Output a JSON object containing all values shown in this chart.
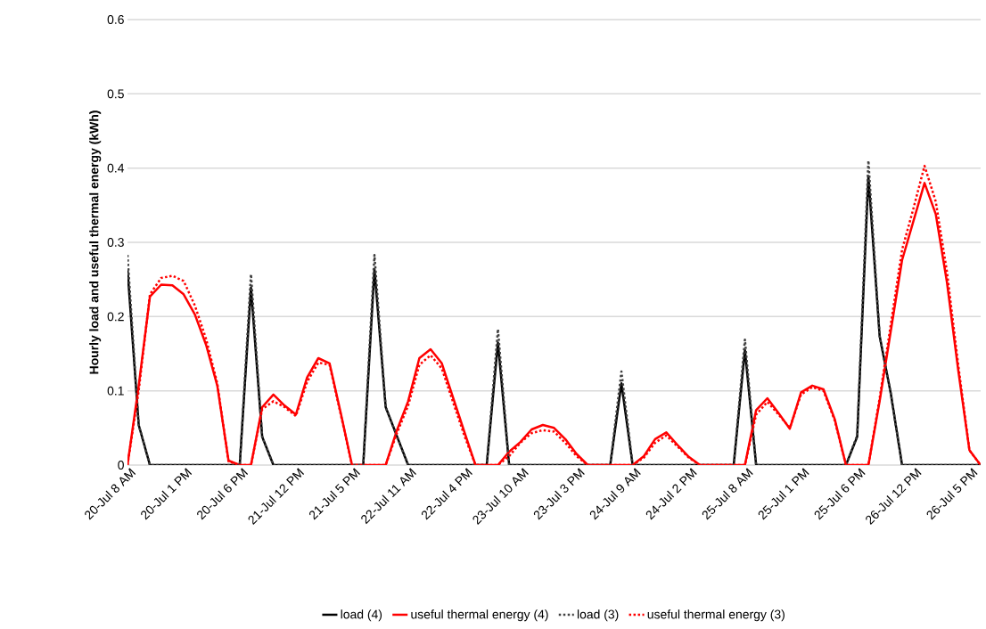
{
  "chart_data": {
    "type": "line",
    "ylabel": "Hourly load and useful thermal energy (kWh)",
    "categories": [
      "20-Jul 8 AM",
      null,
      null,
      null,
      null,
      "20-Jul 1 PM",
      null,
      null,
      null,
      null,
      "20-Jul 6 PM",
      null,
      null,
      null,
      null,
      "21-Jul 12 PM",
      null,
      null,
      null,
      null,
      "21-Jul 5 PM",
      null,
      null,
      null,
      null,
      "22-Jul 11 AM",
      null,
      null,
      null,
      null,
      "22-Jul 4 PM",
      null,
      null,
      null,
      null,
      "23-Jul 10 AM",
      null,
      null,
      null,
      null,
      "23-Jul 3 PM",
      null,
      null,
      null,
      null,
      "24-Jul 9 AM",
      null,
      null,
      null,
      null,
      "24-Jul 2 PM",
      null,
      null,
      null,
      null,
      "25-Jul 8 AM",
      null,
      null,
      null,
      null,
      "25-Jul 1 PM",
      null,
      null,
      null,
      null,
      "25-Jul 6 PM",
      null,
      null,
      null,
      null,
      "26-Jul 12 PM",
      null,
      null,
      null,
      null,
      "26-Jul 5 PM",
      null
    ],
    "series": [
      {
        "name": "load (4)",
        "color": "#000000",
        "line_style": "solid",
        "values": [
          0.264,
          0.054,
          0,
          0,
          0,
          0,
          0,
          0,
          0,
          0,
          0,
          0.239,
          0.038,
          0,
          0,
          0,
          0,
          0,
          0,
          0,
          0,
          0,
          0.264,
          0.078,
          0.039,
          0,
          0,
          0,
          0,
          0,
          0,
          0,
          0,
          0.165,
          0,
          0,
          0,
          0,
          0,
          0,
          0,
          0,
          0,
          0,
          0.11,
          0,
          0,
          0,
          0,
          0,
          0,
          0,
          0,
          0,
          0,
          0.155,
          0,
          0,
          0,
          0,
          0,
          0,
          0,
          0,
          0,
          0.038,
          0.389,
          0.174,
          0.096,
          0,
          0,
          0,
          0,
          0,
          0,
          0,
          0
        ]
      },
      {
        "name": "useful thermal energy (4)",
        "color": "#ff0000",
        "line_style": "solid",
        "values": [
          0,
          0.107,
          0.227,
          0.243,
          0.242,
          0.23,
          0.203,
          0.162,
          0.107,
          0.006,
          0,
          0,
          0.078,
          0.095,
          0.08,
          0.068,
          0.118,
          0.144,
          0.137,
          0.07,
          0,
          0,
          0,
          0,
          0.047,
          0.086,
          0.144,
          0.156,
          0.137,
          0.091,
          0.045,
          0,
          0,
          0,
          0.018,
          0.031,
          0.048,
          0.054,
          0.05,
          0.035,
          0.015,
          0,
          0,
          0,
          0,
          0,
          0.012,
          0.035,
          0.044,
          0.027,
          0.011,
          0,
          0,
          0,
          0,
          0,
          0.074,
          0.09,
          0.07,
          0.049,
          0.098,
          0.107,
          0.102,
          0.062,
          0,
          0,
          0,
          0.086,
          0.181,
          0.276,
          0.328,
          0.38,
          0.338,
          0.246,
          0.128,
          0.02,
          0
        ]
      },
      {
        "name": "load (3)",
        "color": "#404040",
        "line_style": "dotted",
        "values": [
          0.283,
          0.054,
          0,
          0,
          0,
          0,
          0,
          0,
          0,
          0,
          0,
          0.257,
          0.038,
          0,
          0,
          0,
          0,
          0,
          0,
          0,
          0,
          0,
          0.283,
          0.078,
          0.039,
          0,
          0,
          0,
          0,
          0,
          0,
          0,
          0,
          0.183,
          0,
          0,
          0,
          0,
          0,
          0,
          0,
          0,
          0,
          0,
          0.126,
          0,
          0,
          0,
          0,
          0,
          0,
          0,
          0,
          0,
          0,
          0.169,
          0,
          0,
          0,
          0,
          0,
          0,
          0,
          0,
          0,
          0.04,
          0.41,
          0.174,
          0.096,
          0,
          0,
          0,
          0,
          0,
          0,
          0,
          0
        ]
      },
      {
        "name": "useful thermal energy (3)",
        "color": "#ff0000",
        "line_style": "dotted",
        "values": [
          0,
          0.1,
          0.23,
          0.252,
          0.255,
          0.248,
          0.215,
          0.17,
          0.11,
          0.005,
          0,
          0,
          0.075,
          0.086,
          0.078,
          0.066,
          0.112,
          0.138,
          0.135,
          0.068,
          0,
          0,
          0,
          0,
          0.043,
          0.08,
          0.135,
          0.148,
          0.13,
          0.085,
          0.04,
          0,
          0,
          0,
          0.012,
          0.03,
          0.043,
          0.047,
          0.045,
          0.03,
          0.012,
          0,
          0,
          0,
          0,
          0,
          0.01,
          0.03,
          0.04,
          0.025,
          0.01,
          0,
          0,
          0,
          0,
          0,
          0.068,
          0.085,
          0.068,
          0.05,
          0.095,
          0.105,
          0.1,
          0.06,
          0,
          0,
          0,
          0.09,
          0.19,
          0.29,
          0.345,
          0.403,
          0.355,
          0.26,
          0.135,
          0.02,
          0
        ]
      }
    ],
    "ylim": [
      0,
      0.6
    ],
    "yticks": [
      0,
      0.1,
      0.2,
      0.3,
      0.4,
      0.5,
      0.6
    ],
    "grid": "y",
    "legend": "bottom",
    "marker": "none"
  }
}
